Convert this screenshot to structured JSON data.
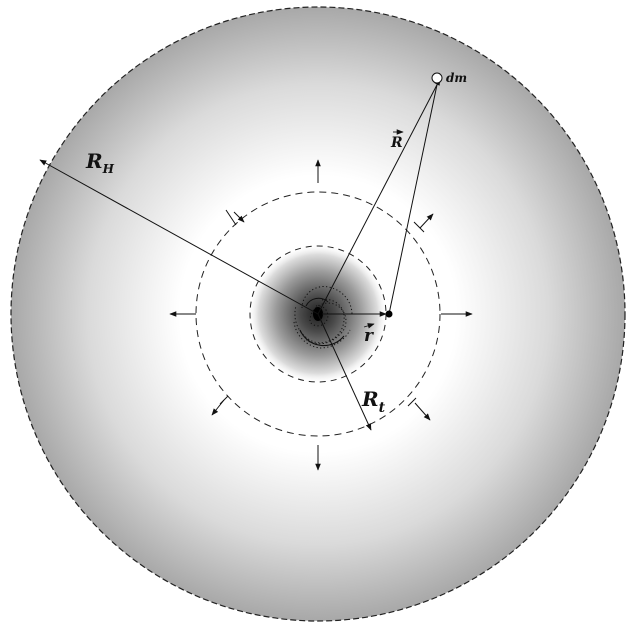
{
  "labels": {
    "halo_radius": "R",
    "halo_radius_sub": "H",
    "tidal_radius": "R",
    "tidal_radius_sub": "t",
    "position_R": "R",
    "position_r": "r",
    "mass_element": "dm"
  },
  "colors": {
    "halo_edge": "#a8a8a8",
    "halo_center": "#ffffff",
    "core_dark": "#1e1e1e",
    "ink": "#111111"
  }
}
